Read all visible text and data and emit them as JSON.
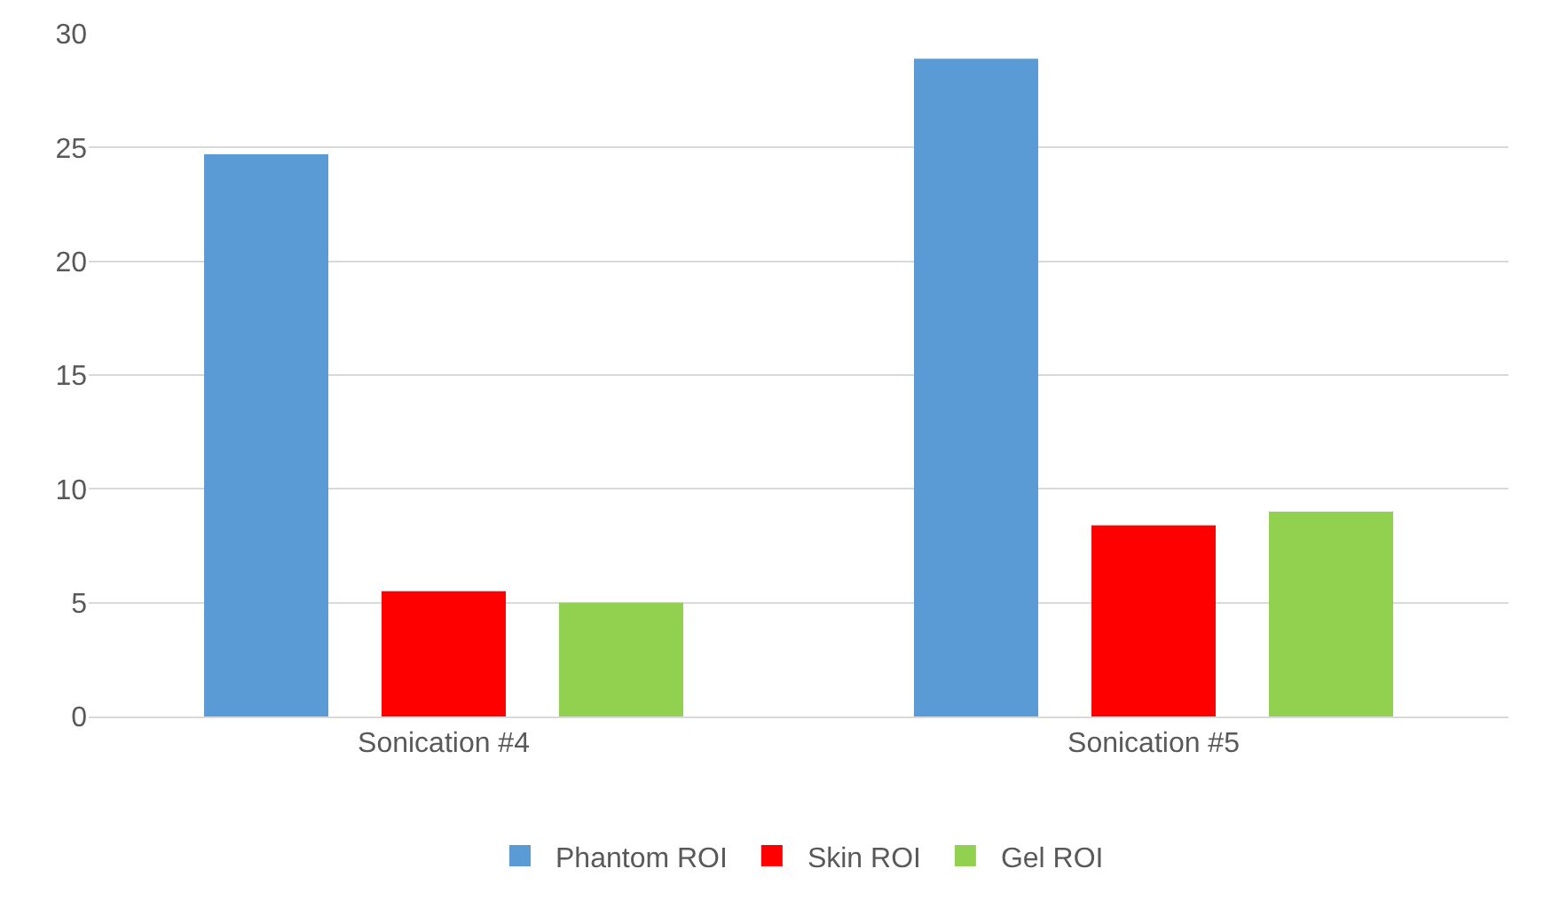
{
  "chart_data": {
    "type": "bar",
    "categories": [
      "Sonication #4",
      "Sonication #5"
    ],
    "series": [
      {
        "name": "Phantom ROI",
        "color": "#5b9bd5",
        "values": [
          24.7,
          28.9
        ]
      },
      {
        "name": "Skin ROI",
        "color": "#ff0000",
        "values": [
          5.5,
          8.4
        ]
      },
      {
        "name": "Gel ROI",
        "color": "#92d050",
        "values": [
          5.0,
          9.0
        ]
      }
    ],
    "ylim": [
      0,
      30
    ],
    "yticks": [
      0,
      5,
      10,
      15,
      20,
      25,
      30
    ],
    "grid": "y",
    "legend": "bottom"
  }
}
